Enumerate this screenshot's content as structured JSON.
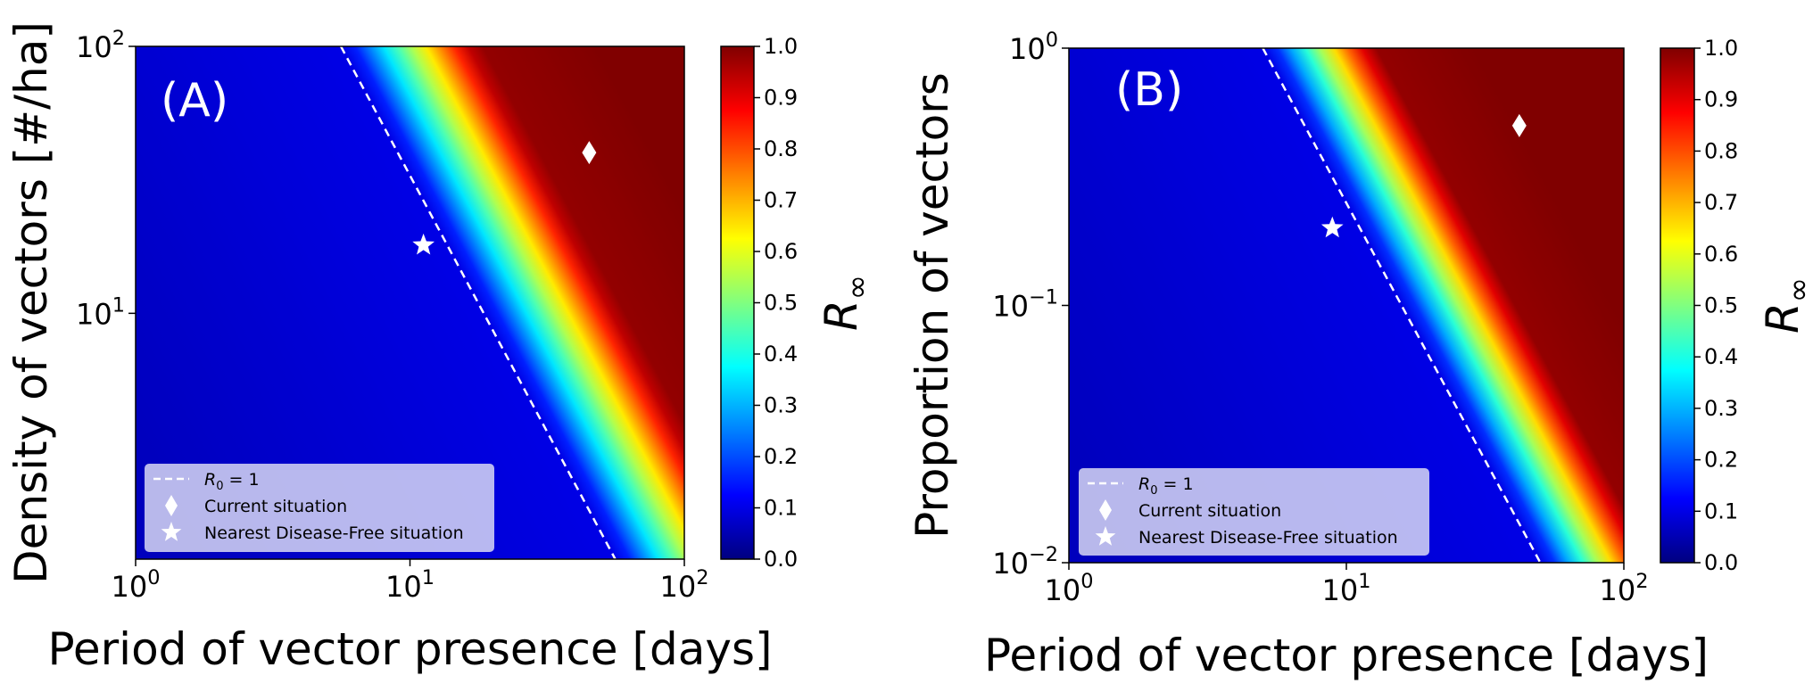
{
  "chart_data": [
    {
      "type": "heatmap",
      "panel_label": "(A)",
      "xlabel": "Period of vector presence [days]",
      "ylabel": "Density of vectors [#/ha]",
      "xscale": "log",
      "yscale": "log",
      "xlim": [
        1,
        100
      ],
      "ylim": [
        1.2,
        100
      ],
      "xticks": [
        {
          "value": 1,
          "base": "10",
          "exp": "0"
        },
        {
          "value": 10,
          "base": "10",
          "exp": "1"
        },
        {
          "value": 100,
          "base": "10",
          "exp": "2"
        }
      ],
      "yticks": [
        {
          "value": 10,
          "base": "10",
          "exp": "1"
        },
        {
          "value": 100,
          "base": "10",
          "exp": "2"
        }
      ],
      "r0_line": {
        "x": [
          5.6,
          56
        ],
        "y": [
          100,
          1.2
        ]
      },
      "transition_width": 0.15,
      "points": [
        {
          "name": "Current situation",
          "marker": "diamond",
          "x": 45,
          "y": 40
        },
        {
          "name": "Nearest Disease-Free situation",
          "marker": "star",
          "x": 11.2,
          "y": 18
        }
      ],
      "colorbar": {
        "label": "R",
        "label_sub": "∞",
        "range": [
          0.0,
          1.0
        ],
        "ticks": [
          "0.0",
          "0.1",
          "0.2",
          "0.3",
          "0.4",
          "0.5",
          "0.6",
          "0.7",
          "0.8",
          "0.9",
          "1.0"
        ]
      },
      "legend": {
        "position": "lower-left",
        "entries": [
          {
            "marker": "dashed-line",
            "label_main": "R",
            "label_sub": "0",
            "label_rest": " = 1"
          },
          {
            "marker": "diamond",
            "label": "Current situation"
          },
          {
            "marker": "star",
            "label": "Nearest Disease-Free situation"
          }
        ]
      }
    },
    {
      "type": "heatmap",
      "panel_label": "(B)",
      "xlabel": "Period of vector presence [days]",
      "ylabel": "Proportion of vectors",
      "xscale": "log",
      "yscale": "log",
      "xlim": [
        1,
        100
      ],
      "ylim": [
        0.01,
        1
      ],
      "xticks": [
        {
          "value": 1,
          "base": "10",
          "exp": "0"
        },
        {
          "value": 10,
          "base": "10",
          "exp": "1"
        },
        {
          "value": 100,
          "base": "10",
          "exp": "2"
        }
      ],
      "yticks": [
        {
          "value": 0.01,
          "base": "10",
          "exp": "−2"
        },
        {
          "value": 0.1,
          "base": "10",
          "exp": "−1"
        },
        {
          "value": 1,
          "base": "10",
          "exp": "0"
        }
      ],
      "r0_line": {
        "x": [
          5.0,
          50
        ],
        "y": [
          1,
          0.01
        ]
      },
      "transition_width": 0.12,
      "points": [
        {
          "name": "Current situation",
          "marker": "diamond",
          "x": 42,
          "y": 0.5
        },
        {
          "name": "Nearest Disease-Free situation",
          "marker": "star",
          "x": 8.9,
          "y": 0.2
        }
      ],
      "colorbar": {
        "label": "R",
        "label_sub": "∞",
        "range": [
          0.0,
          1.0
        ],
        "ticks": [
          "0.0",
          "0.1",
          "0.2",
          "0.3",
          "0.4",
          "0.5",
          "0.6",
          "0.7",
          "0.8",
          "0.9",
          "1.0"
        ]
      },
      "legend": {
        "position": "lower-left",
        "entries": [
          {
            "marker": "dashed-line",
            "label_main": "R",
            "label_sub": "0",
            "label_rest": " = 1"
          },
          {
            "marker": "diamond",
            "label": "Current situation"
          },
          {
            "marker": "star",
            "label": "Nearest Disease-Free situation"
          }
        ]
      }
    }
  ]
}
